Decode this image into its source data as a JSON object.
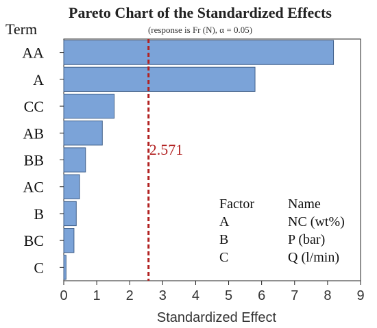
{
  "chart_data": {
    "type": "bar",
    "orientation": "horizontal",
    "title": "Pareto Chart of the Standardized Effects",
    "subtitle": "(response is Fr (N), α = 0.05)",
    "ylabel": "Term",
    "xlabel": "Standardized Effect",
    "categories": [
      "AA",
      "A",
      "CC",
      "AB",
      "BB",
      "AC",
      "B",
      "BC",
      "C"
    ],
    "values": [
      8.18,
      5.8,
      1.53,
      1.17,
      0.66,
      0.48,
      0.38,
      0.31,
      0.07
    ],
    "xlim": [
      0,
      9
    ],
    "xticks": [
      "0",
      "1",
      "2",
      "3",
      "4",
      "5",
      "6",
      "7",
      "8",
      "9"
    ],
    "reference_line": {
      "value": 2.571,
      "label": "2.571",
      "color": "#b22222"
    },
    "bar_color": "#7ba3d8",
    "bar_edge_color": "#3f5f8a",
    "legend": {
      "headers": {
        "factor": "Factor",
        "name": "Name"
      },
      "rows": [
        {
          "factor": "A",
          "name": "NC (wt%)"
        },
        {
          "factor": "B",
          "name": "P (bar)"
        },
        {
          "factor": "C",
          "name": "Q (l/min)"
        }
      ]
    }
  }
}
